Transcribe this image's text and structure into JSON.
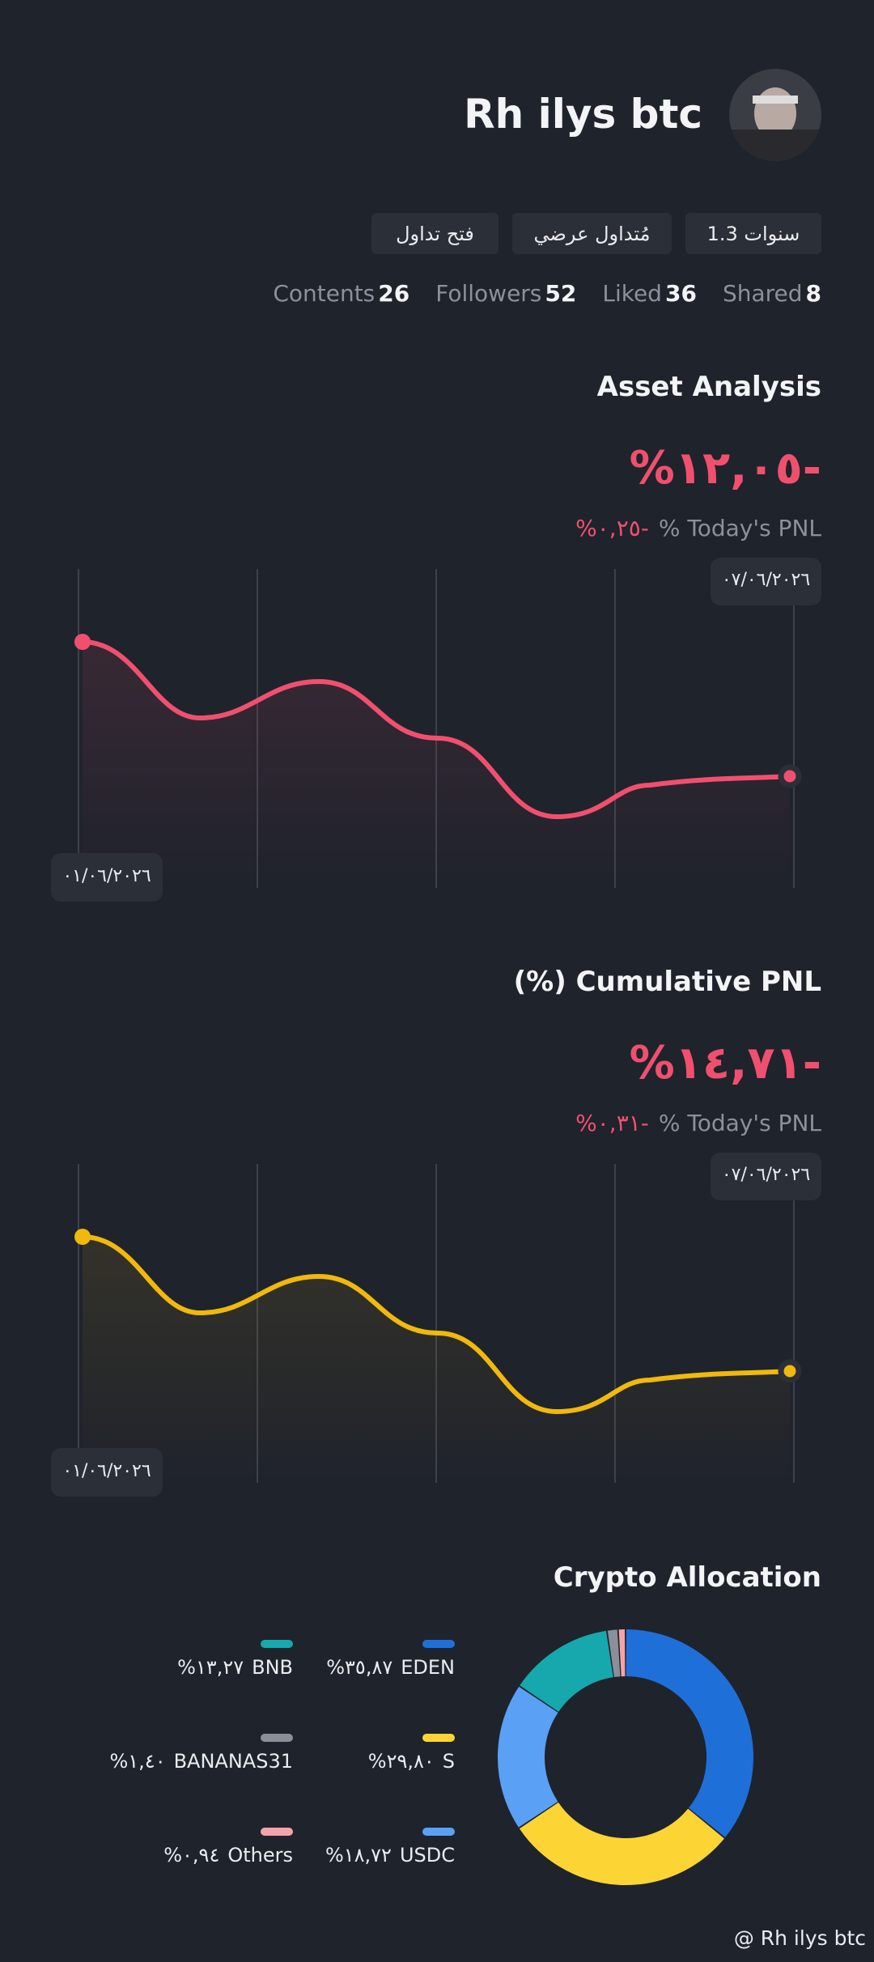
{
  "profile": {
    "name": "Rh ilys btc",
    "badges": [
      "1.3 سنوات",
      "مُتداول عرضي",
      "فتح تداول"
    ],
    "stats": [
      {
        "label": "Contents",
        "value": "26"
      },
      {
        "label": "Followers",
        "value": "52"
      },
      {
        "label": "Liked",
        "value": "36"
      },
      {
        "label": "Shared",
        "value": "8"
      }
    ]
  },
  "asset_analysis": {
    "title": "Asset Analysis",
    "value": "%١٢,٠٥-",
    "today_label": "% Today's PNL",
    "today_value": "%٠,٢٥-",
    "end_date": "٠٧/٠٦/٢٠٢٦",
    "start_date": "٠١/٠٦/٢٠٢٦"
  },
  "cumulative_pnl": {
    "title": "(%) Cumulative PNL",
    "value": "%١٤,٧١-",
    "today_label": "% Today's PNL",
    "today_value": "%٠,٣١-",
    "end_date": "٠٧/٠٦/٢٠٢٦",
    "start_date": "٠١/٠٦/٢٠٢٦"
  },
  "chart_data": {
    "type": "donut",
    "title": "Crypto Allocation",
    "categories": [
      "EDEN",
      "S",
      "USDC",
      "BNB",
      "BANANAS31",
      "Others"
    ],
    "values": [
      35.87,
      29.8,
      18.72,
      13.27,
      1.4,
      0.94
    ],
    "value_labels": [
      "%٣٥,٨٧",
      "%٢٩,٨٠",
      "%١٨,٧٢",
      "%١٣,٢٧",
      "%١,٤٠",
      "%٠,٩٤"
    ],
    "colors": [
      "#1f6fd8",
      "#fcd535",
      "#5aa0f5",
      "#16a8ad",
      "#8a8f99",
      "#f5a3aa"
    ]
  },
  "watermark": "@ Rh ilys btc"
}
